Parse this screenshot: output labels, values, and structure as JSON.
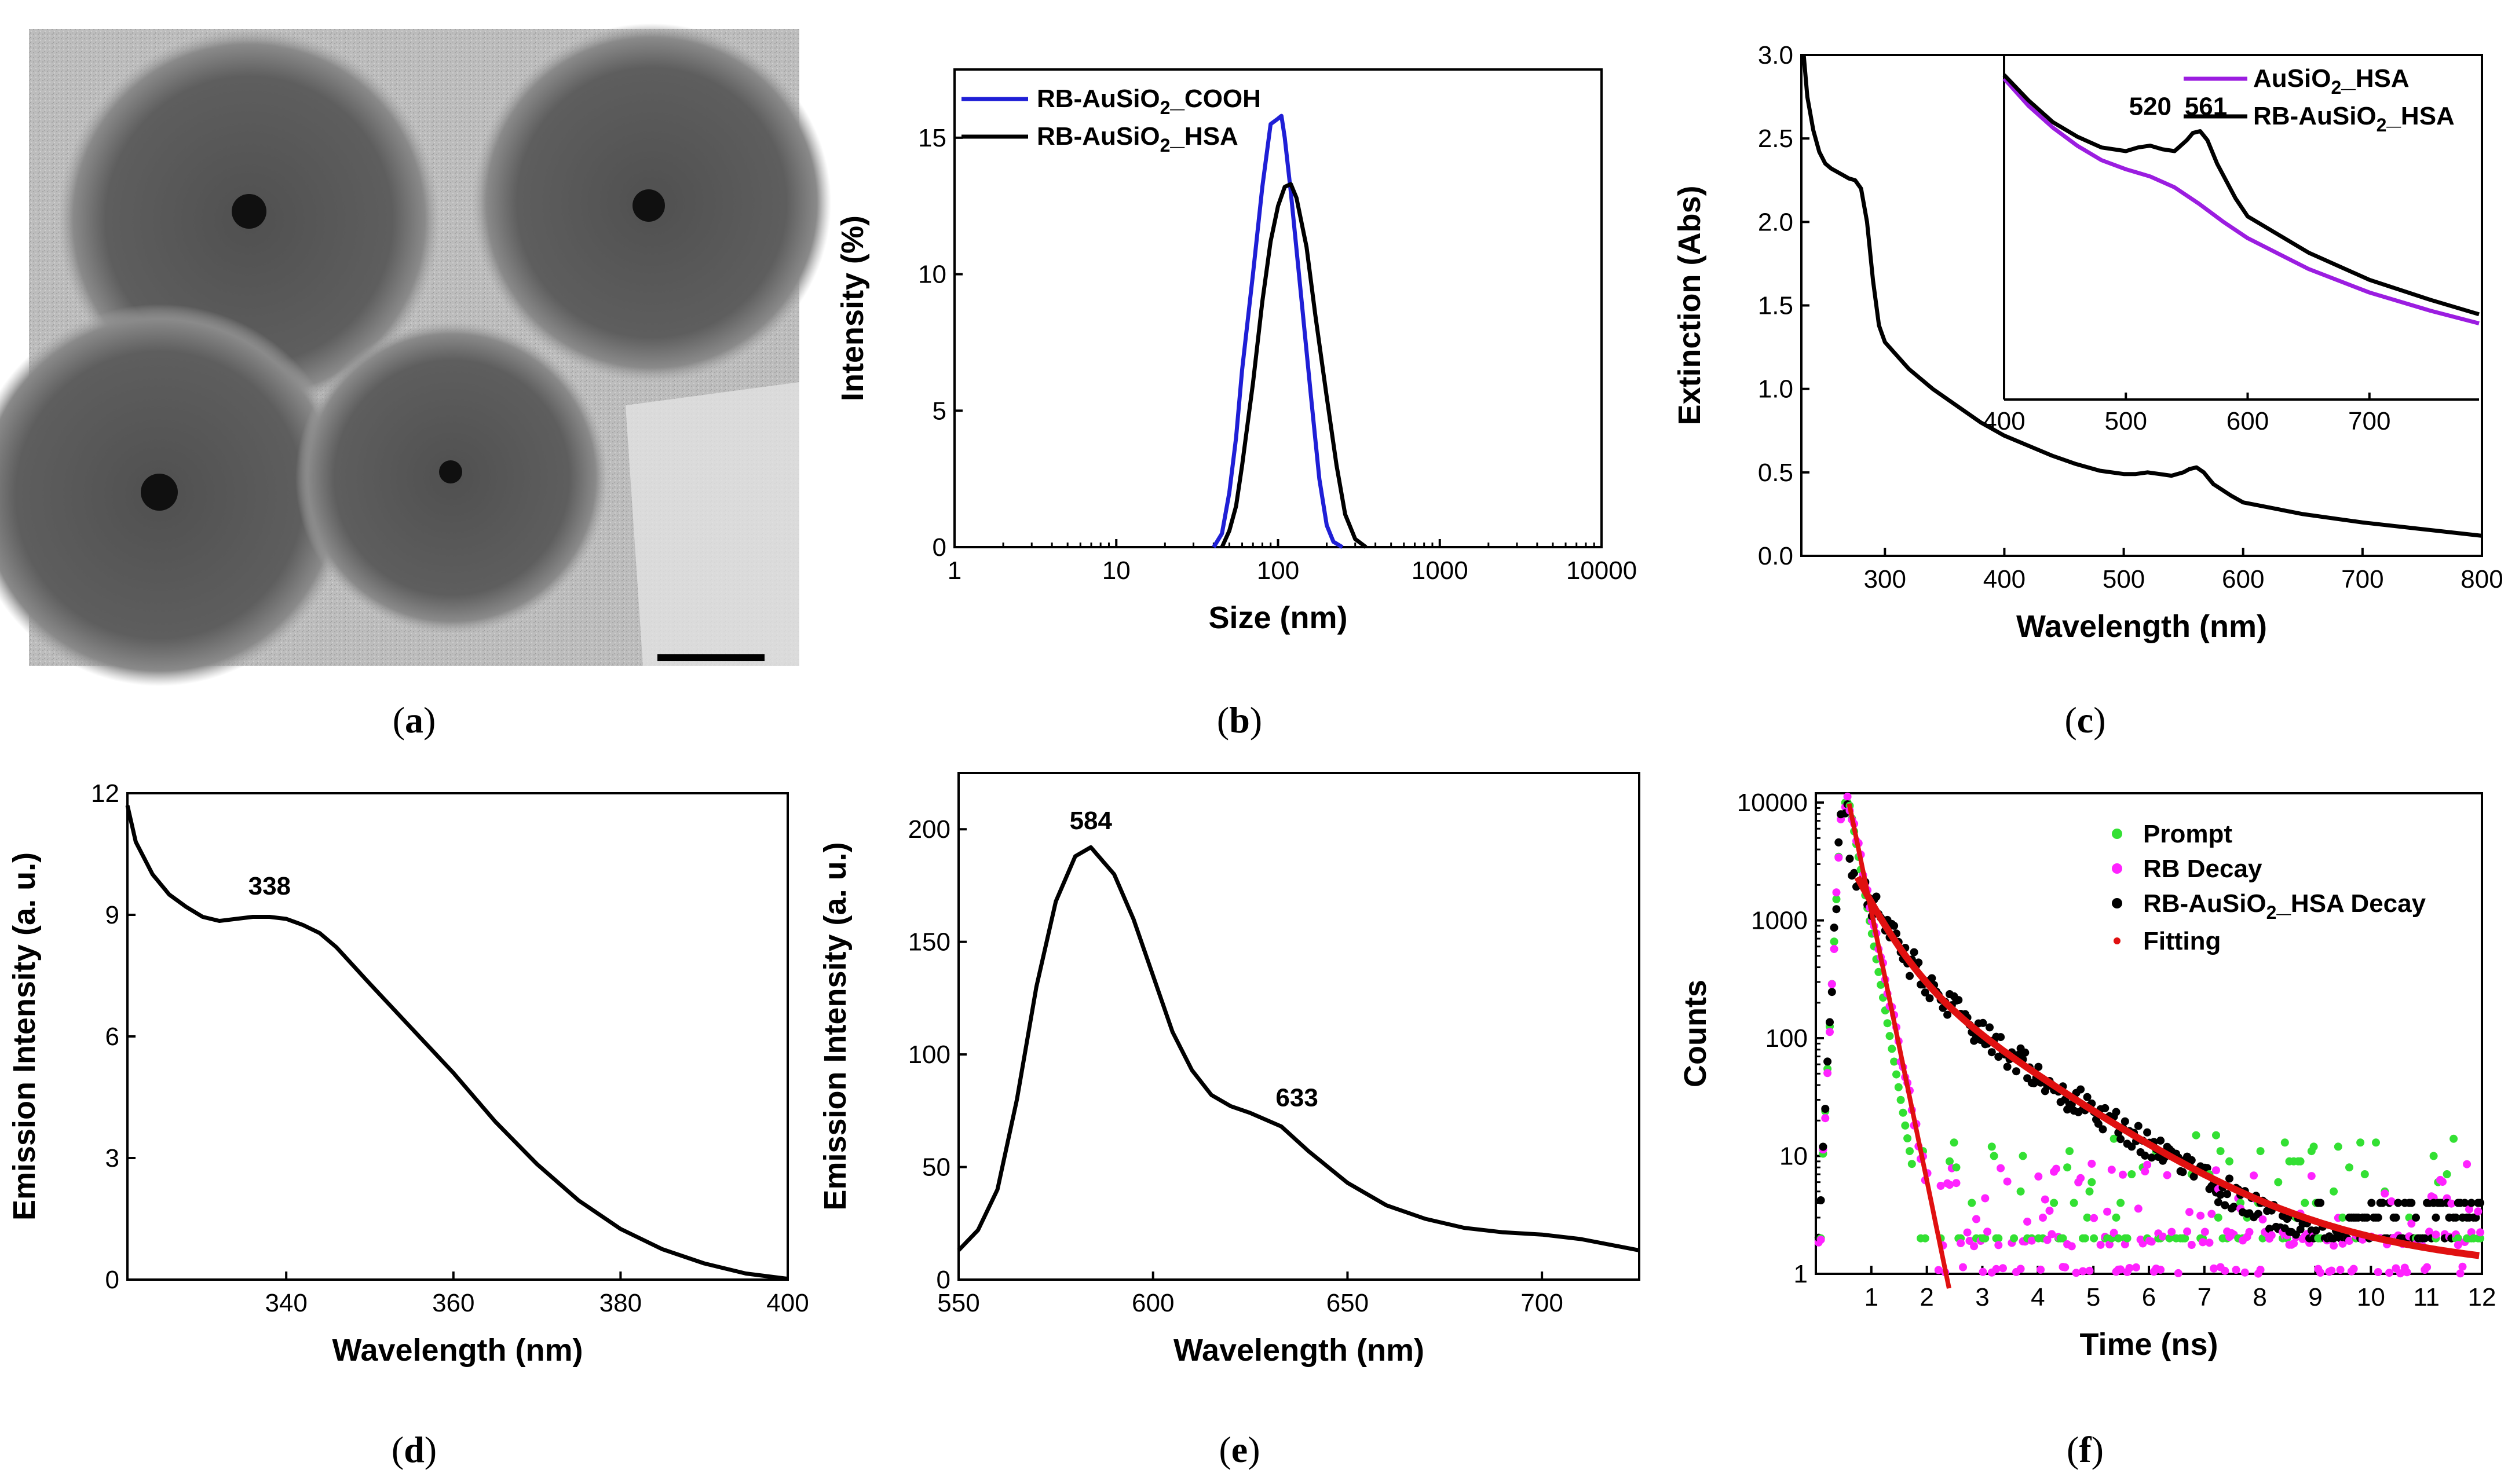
{
  "panel_labels": [
    "a",
    "b",
    "c",
    "d",
    "e",
    "f"
  ],
  "chart_data": [
    {
      "panel": "a",
      "type": "image",
      "description_visible": "TEM micrograph of core-shell nanoparticles with scale bar"
    },
    {
      "panel": "b",
      "type": "line",
      "xscale": "log",
      "xlim": [
        1,
        10000
      ],
      "ylim": [
        0,
        17.5
      ],
      "xticks": [
        1,
        10,
        100,
        1000,
        10000
      ],
      "xtick_labels": [
        "1",
        "10",
        "100",
        "1000",
        "10000"
      ],
      "yticks": [
        0,
        5,
        10,
        15
      ],
      "ytick_labels": [
        "0",
        "5",
        "10",
        "15"
      ],
      "xlabel": "Size (nm)",
      "ylabel": "Intensity (%)",
      "legend_position": "top-left",
      "series": [
        {
          "name": "RB-AuSiO2_COOH",
          "color": "#1f1fd6",
          "x": [
            40,
            45,
            50,
            55,
            60,
            70,
            80,
            90,
            100,
            105,
            110,
            120,
            140,
            160,
            180,
            200,
            220,
            250
          ],
          "y": [
            0,
            0.5,
            2.0,
            4.0,
            6.5,
            10.0,
            13.2,
            15.5,
            15.7,
            15.8,
            15.0,
            13.0,
            9.0,
            5.5,
            2.5,
            0.8,
            0.2,
            0
          ]
        },
        {
          "name": "RB-AuSiO2_HSA",
          "color": "#000000",
          "x": [
            45,
            50,
            55,
            60,
            70,
            80,
            90,
            100,
            110,
            120,
            130,
            150,
            170,
            200,
            230,
            260,
            300,
            350
          ],
          "y": [
            0,
            0.6,
            1.5,
            3.0,
            6.0,
            9.0,
            11.2,
            12.5,
            13.2,
            13.3,
            12.8,
            11.0,
            8.5,
            5.5,
            3.0,
            1.2,
            0.3,
            0
          ]
        }
      ],
      "legend_labels": [
        {
          "pre": "RB-AuSiO",
          "sub": "2",
          "post": "_COOH"
        },
        {
          "pre": "RB-AuSiO",
          "sub": "2",
          "post": "_HSA"
        }
      ]
    },
    {
      "panel": "c",
      "type": "line",
      "xlim": [
        230,
        800
      ],
      "ylim": [
        0,
        3.0
      ],
      "xticks": [
        300,
        400,
        500,
        600,
        700,
        800
      ],
      "xtick_labels": [
        "300",
        "400",
        "500",
        "600",
        "700",
        "800"
      ],
      "yticks": [
        0,
        0.5,
        1.0,
        1.5,
        2.0,
        2.5,
        3.0
      ],
      "ytick_labels": [
        "0.0",
        "0.5",
        "1.0",
        "1.5",
        "2.0",
        "2.5",
        "3.0"
      ],
      "xlabel": "Wavelength (nm)",
      "ylabel": "Extinction (Abs)",
      "series": [
        {
          "name": "RB-AuSiO2_HSA",
          "color": "#000000",
          "x": [
            232,
            235,
            240,
            245,
            250,
            255,
            260,
            265,
            270,
            275,
            280,
            285,
            290,
            295,
            300,
            320,
            340,
            360,
            380,
            400,
            420,
            440,
            460,
            480,
            500,
            510,
            520,
            530,
            540,
            550,
            555,
            561,
            567,
            575,
            590,
            600,
            650,
            700,
            750,
            800
          ],
          "y": [
            3.0,
            2.75,
            2.55,
            2.42,
            2.35,
            2.32,
            2.3,
            2.28,
            2.26,
            2.25,
            2.2,
            2.0,
            1.65,
            1.38,
            1.28,
            1.12,
            1.0,
            0.9,
            0.8,
            0.72,
            0.66,
            0.6,
            0.55,
            0.51,
            0.49,
            0.49,
            0.5,
            0.49,
            0.48,
            0.5,
            0.52,
            0.53,
            0.5,
            0.43,
            0.36,
            0.32,
            0.25,
            0.2,
            0.16,
            0.12
          ]
        }
      ],
      "inset": {
        "xlim": [
          400,
          790
        ],
        "ylim": [
          0.55,
          2.45
        ],
        "xticks": [
          400,
          500,
          600,
          700
        ],
        "xtick_labels": [
          "400",
          "500",
          "600",
          "700"
        ],
        "legend_position": "top-right",
        "legend_labels": [
          {
            "pre": "AuSiO",
            "sub": "2",
            "post": "_HSA"
          },
          {
            "pre": "RB-AuSiO",
            "sub": "2",
            "post": "_HSA"
          }
        ],
        "annotations": [
          "520",
          "561"
        ],
        "series": [
          {
            "name": "AuSiO2_HSA",
            "color": "#9b1de0",
            "x": [
              400,
              420,
              440,
              460,
              480,
              500,
              520,
              540,
              560,
              580,
              600,
              650,
              700,
              750,
              790
            ],
            "y": [
              2.32,
              2.17,
              2.05,
              1.95,
              1.87,
              1.82,
              1.78,
              1.72,
              1.63,
              1.53,
              1.44,
              1.27,
              1.14,
              1.04,
              0.97
            ]
          },
          {
            "name": "RB-AuSiO2_HSA",
            "color": "#000000",
            "x": [
              400,
              420,
              440,
              460,
              480,
              500,
              510,
              520,
              530,
              540,
              550,
              555,
              561,
              567,
              575,
              590,
              600,
              650,
              700,
              750,
              790
            ],
            "y": [
              2.34,
              2.2,
              2.08,
              2.0,
              1.94,
              1.92,
              1.94,
              1.95,
              1.93,
              1.92,
              1.98,
              2.02,
              2.03,
              1.98,
              1.85,
              1.66,
              1.56,
              1.36,
              1.21,
              1.1,
              1.02
            ]
          }
        ]
      }
    },
    {
      "panel": "d",
      "type": "line",
      "xlim": [
        321,
        400
      ],
      "ylim": [
        0,
        12
      ],
      "xticks": [
        340,
        360,
        380,
        400
      ],
      "xtick_labels": [
        "340",
        "360",
        "380",
        "400"
      ],
      "yticks": [
        0,
        3,
        6,
        9,
        12
      ],
      "ytick_labels": [
        "0",
        "3",
        "6",
        "9",
        "12"
      ],
      "xlabel": "Wavelength (nm)",
      "ylabel": "Emission Intensity (a. u.)",
      "annotations": [
        "338"
      ],
      "series": [
        {
          "name": "",
          "color": "#000000",
          "x": [
            321,
            322,
            324,
            326,
            328,
            330,
            332,
            334,
            336,
            338,
            340,
            342,
            344,
            346,
            350,
            355,
            360,
            365,
            370,
            375,
            380,
            385,
            390,
            395,
            400
          ],
          "y": [
            11.7,
            10.8,
            10.0,
            9.5,
            9.2,
            8.95,
            8.85,
            8.9,
            8.95,
            8.95,
            8.9,
            8.75,
            8.55,
            8.2,
            7.3,
            6.2,
            5.1,
            3.9,
            2.85,
            1.95,
            1.25,
            0.75,
            0.4,
            0.15,
            0.02
          ]
        }
      ]
    },
    {
      "panel": "e",
      "type": "line",
      "xlim": [
        550,
        725
      ],
      "ylim": [
        0,
        225
      ],
      "xticks": [
        550,
        600,
        650,
        700
      ],
      "xtick_labels": [
        "550",
        "600",
        "650",
        "700"
      ],
      "yticks": [
        0,
        50,
        100,
        150,
        200
      ],
      "ytick_labels": [
        "0",
        "50",
        "100",
        "150",
        "200"
      ],
      "xlabel": "Wavelength (nm)",
      "ylabel": "Emission Intensity (a. u.)",
      "annotations": [
        "584",
        "633"
      ],
      "series": [
        {
          "name": "",
          "color": "#000000",
          "x": [
            550,
            555,
            560,
            565,
            570,
            575,
            580,
            584,
            590,
            595,
            600,
            605,
            610,
            615,
            620,
            625,
            633,
            640,
            650,
            660,
            670,
            680,
            690,
            700,
            710,
            725
          ],
          "y": [
            13,
            22,
            40,
            80,
            130,
            168,
            188,
            192,
            180,
            160,
            135,
            110,
            93,
            82,
            77,
            74,
            68,
            57,
            43,
            33,
            27,
            23,
            21,
            20,
            18,
            13
          ]
        }
      ]
    },
    {
      "panel": "f",
      "type": "scatter",
      "yscale": "log",
      "xlim": [
        0,
        12
      ],
      "ylim": [
        1,
        12000
      ],
      "xticks": [
        1,
        2,
        3,
        4,
        5,
        6,
        7,
        8,
        9,
        10,
        11,
        12
      ],
      "xtick_labels": [
        "1",
        "2",
        "3",
        "4",
        "5",
        "6",
        "7",
        "8",
        "9",
        "10",
        "11",
        "12"
      ],
      "yticks": [
        1,
        10,
        100,
        1000,
        10000
      ],
      "ytick_labels": [
        "1",
        "10",
        "100",
        "1000",
        "10000"
      ],
      "xlabel": "Time (ns)",
      "ylabel": "Counts",
      "legend_position": "top-right",
      "legend_labels": [
        {
          "pre": "Prompt",
          "sub": "",
          "post": ""
        },
        {
          "pre": "RB Decay",
          "sub": "",
          "post": ""
        },
        {
          "pre": "RB-AuSiO",
          "sub": "2",
          "post": "_HSA Decay"
        },
        {
          "pre": "Fitting",
          "sub": "",
          "post": ""
        }
      ],
      "series": [
        {
          "name": "Prompt",
          "color": "#33e033"
        },
        {
          "name": "RB Decay",
          "color": "#ff22ff"
        },
        {
          "name": "RB-AuSiO2_HSA Decay",
          "color": "#000000"
        },
        {
          "name": "Fitting",
          "color": "#e01010"
        }
      ]
    }
  ]
}
